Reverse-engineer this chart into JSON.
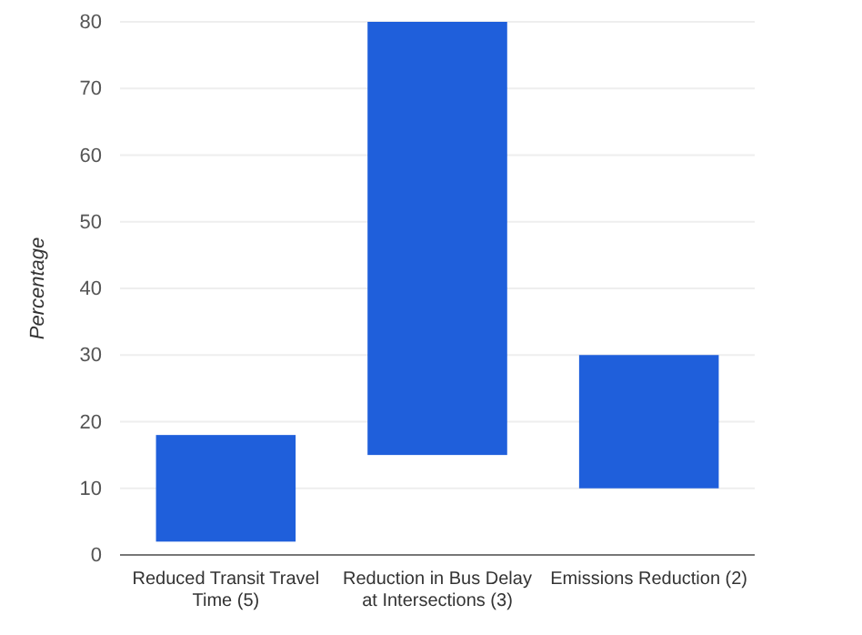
{
  "chart_data": {
    "type": "bar",
    "ylabel": "Percentage",
    "categories": [
      "Reduced Transit Travel Time (5)",
      "Reduction in Bus Delay at Intersections (3)",
      "Emissions Reduction (2)"
    ],
    "values": [
      16,
      65,
      20
    ],
    "base": [
      2,
      15,
      10
    ],
    "color": "#1f5fdb",
    "ylim": [
      0,
      80
    ],
    "yticks": [
      0,
      10,
      20,
      30,
      40,
      50,
      60,
      70,
      80
    ],
    "grid": "y"
  }
}
